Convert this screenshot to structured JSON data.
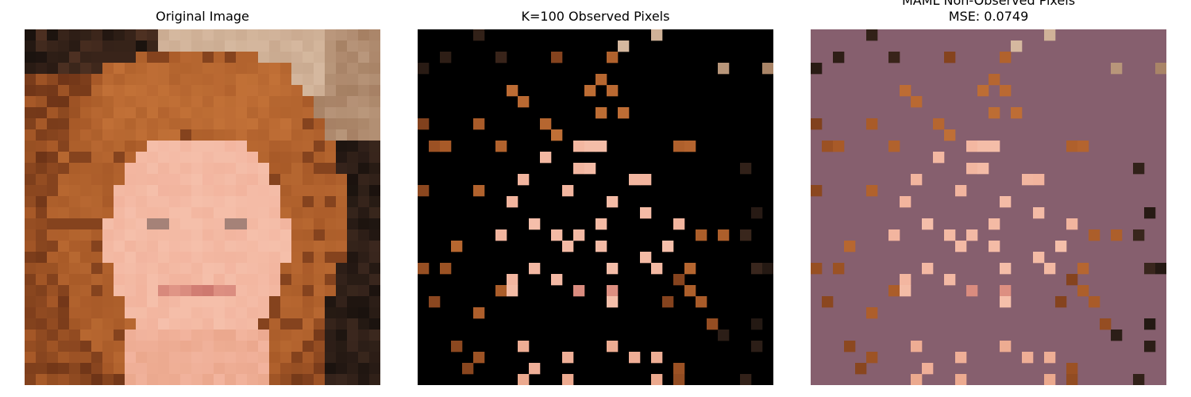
{
  "panels": [
    {
      "title": "Original Image"
    },
    {
      "title": "K=100 Observed Pixels"
    },
    {
      "title": "MAML Non-Observed Pixels",
      "subtitle": "MSE: 0.0749"
    }
  ],
  "colors": {
    "masked_background": "#000000",
    "predicted_background": "#865F6E",
    "skin": "#F2B49E",
    "skin_light": "#F7C7B3",
    "hair": "#A85A28",
    "hair_dark": "#6E3417",
    "hair_light": "#C9773B",
    "background_top": "#C9A98F",
    "background_dark": "#1A120E"
  }
}
